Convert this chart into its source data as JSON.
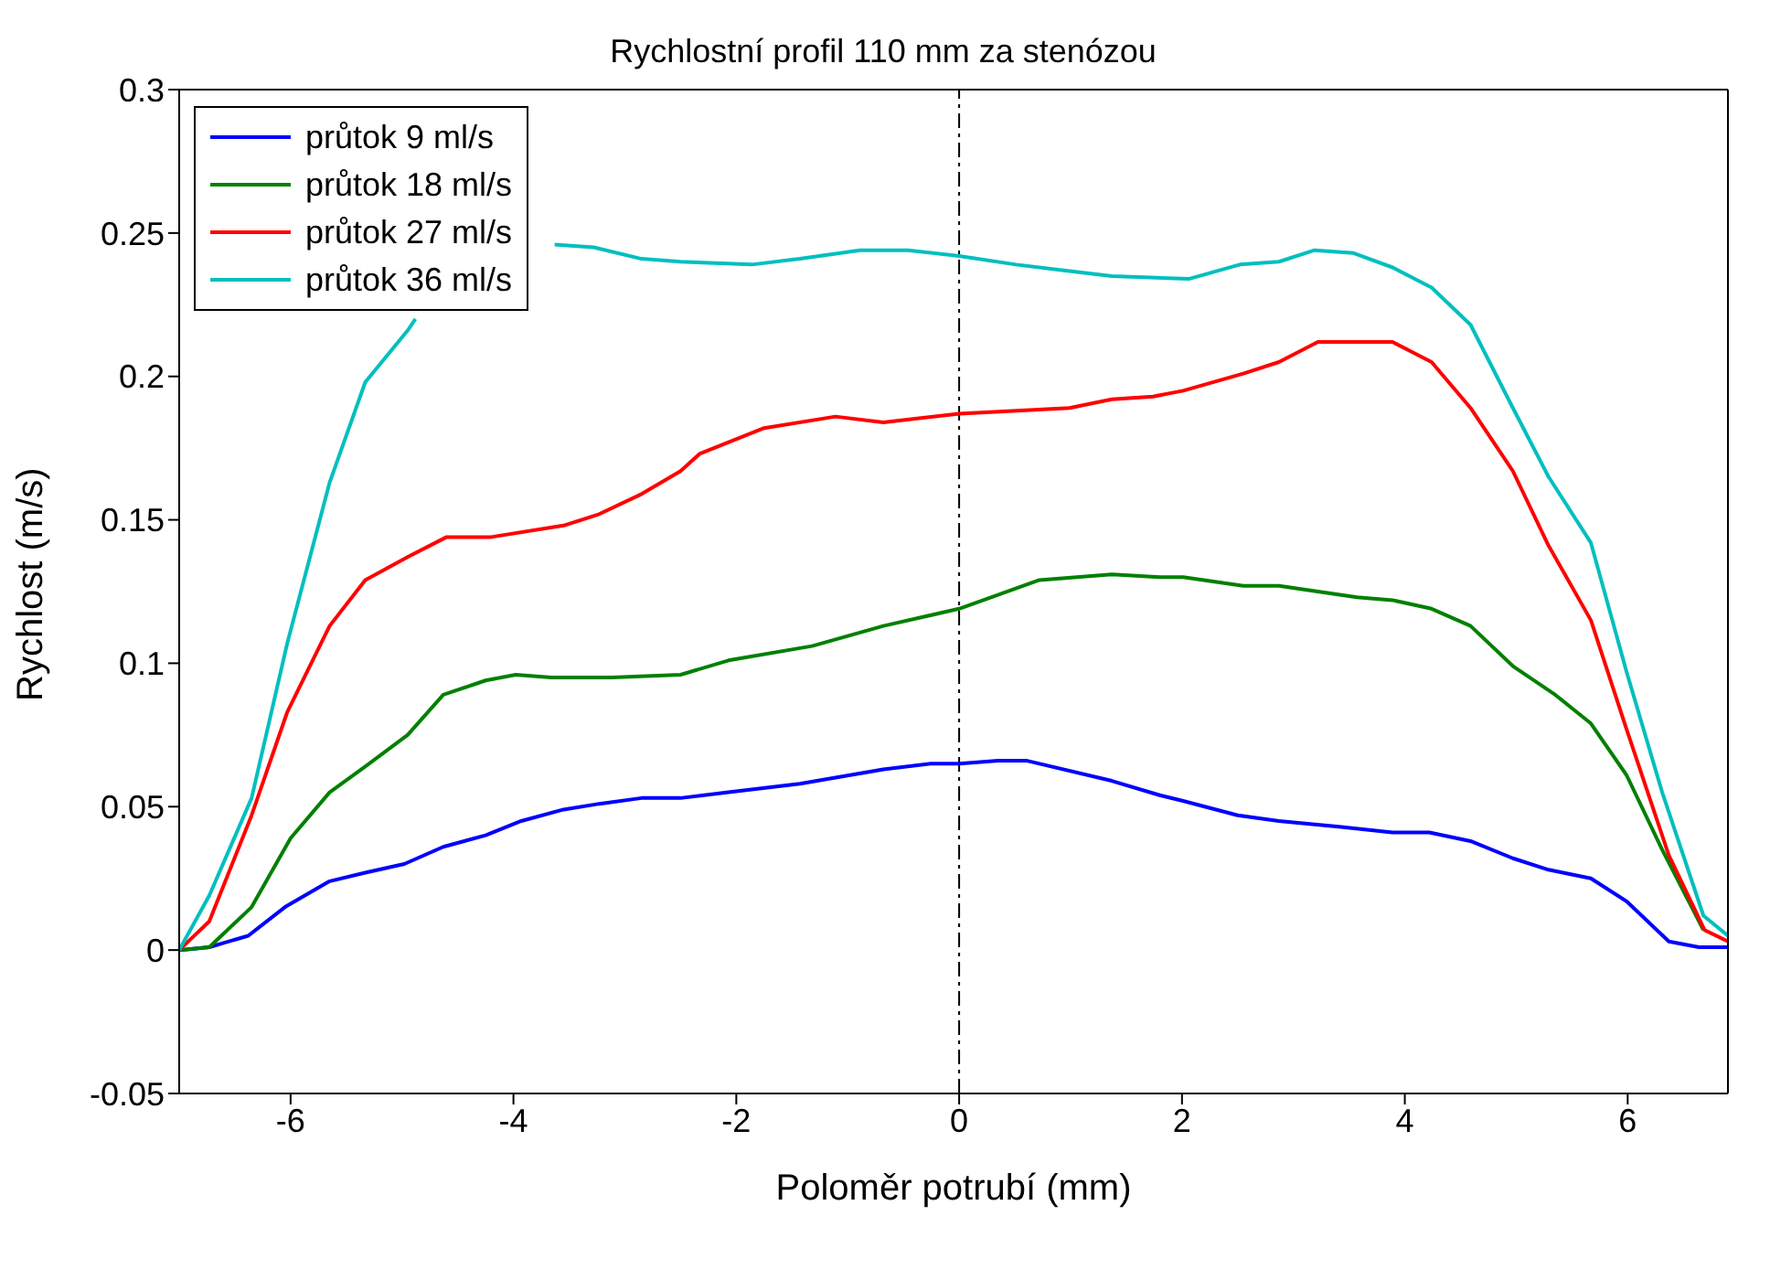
{
  "chart_data": {
    "type": "line",
    "title": "Rychlostní profil 110 mm za stenózou",
    "xlabel": "Poloměr potrubí (mm)",
    "ylabel": "Rychlost (m/s)",
    "xlim": [
      -7,
      6.9
    ],
    "xticks": [
      -6,
      -4,
      -2,
      0,
      2,
      4,
      6
    ],
    "ylim": [
      -0.05,
      0.3
    ],
    "yticks": [
      -0.05,
      0,
      0.05,
      0.1,
      0.15,
      0.2,
      0.25,
      0.3
    ],
    "grid": false,
    "legend": "top left",
    "marker": "none",
    "line_style": "solid",
    "ref_lines": [
      {
        "axis": "x",
        "value": 0,
        "color": "#000000",
        "line_style": "dashdot"
      }
    ],
    "series": [
      {
        "name": "průtok 9 ml/s",
        "color": "#0000ff",
        "x": [
          -7,
          -6.73,
          -6.38,
          -6.05,
          -5.65,
          -5.33,
          -4.98,
          -4.63,
          -4.25,
          -3.93,
          -3.55,
          -3.23,
          -2.85,
          -2.5,
          -2.07,
          -1.43,
          -0.68,
          -0.25,
          0,
          0.35,
          0.61,
          1.37,
          1.8,
          2.01,
          2.5,
          2.87,
          3.41,
          3.89,
          4.22,
          4.59,
          4.97,
          5.29,
          5.67,
          5.99,
          6.37,
          6.64,
          6.9
        ],
        "values": [
          0,
          0.001,
          0.005,
          0.015,
          0.024,
          0.027,
          0.03,
          0.036,
          0.04,
          0.045,
          0.049,
          0.051,
          0.053,
          0.053,
          0.055,
          0.058,
          0.063,
          0.065,
          0.065,
          0.066,
          0.066,
          0.059,
          0.054,
          0.052,
          0.047,
          0.045,
          0.043,
          0.041,
          0.041,
          0.038,
          0.032,
          0.028,
          0.025,
          0.017,
          0.003,
          0.001,
          0.001
        ]
      },
      {
        "name": "průtok 18 ml/s",
        "color": "#008000",
        "x": [
          -7,
          -6.73,
          -6.35,
          -6,
          -5.65,
          -5.33,
          -4.95,
          -4.63,
          -4.25,
          -3.98,
          -3.66,
          -3.12,
          -2.5,
          -2.07,
          -1.32,
          -0.68,
          0,
          0.72,
          1.37,
          1.8,
          2.01,
          2.55,
          2.87,
          3.57,
          3.89,
          4.24,
          4.59,
          4.97,
          5.35,
          5.67,
          5.99,
          6.31,
          6.68
        ],
        "values": [
          0,
          0.001,
          0.015,
          0.039,
          0.055,
          0.064,
          0.075,
          0.089,
          0.094,
          0.096,
          0.095,
          0.095,
          0.096,
          0.101,
          0.106,
          0.113,
          0.119,
          0.129,
          0.131,
          0.13,
          0.13,
          0.127,
          0.127,
          0.123,
          0.122,
          0.119,
          0.113,
          0.099,
          0.089,
          0.079,
          0.061,
          0.035,
          0.007
        ]
      },
      {
        "name": "průtok 27 ml/s",
        "color": "#ff0000",
        "x": [
          -7,
          -6.73,
          -6.35,
          -6.03,
          -5.65,
          -5.33,
          -4.95,
          -4.6,
          -4.2,
          -3.55,
          -3.23,
          -2.85,
          -2.5,
          -2.33,
          -1.75,
          -1.11,
          -0.68,
          0,
          0.99,
          1.37,
          1.74,
          2.01,
          2.55,
          2.87,
          3.22,
          3.89,
          4.24,
          4.59,
          4.97,
          5.29,
          5.67,
          5.99,
          6.37,
          6.69,
          6.9
        ],
        "values": [
          0,
          0.01,
          0.047,
          0.083,
          0.113,
          0.129,
          0.137,
          0.144,
          0.144,
          0.148,
          0.152,
          0.159,
          0.167,
          0.173,
          0.182,
          0.186,
          0.184,
          0.187,
          0.189,
          0.192,
          0.193,
          0.195,
          0.201,
          0.205,
          0.212,
          0.212,
          0.205,
          0.189,
          0.167,
          0.141,
          0.115,
          0.077,
          0.033,
          0.007,
          0.003
        ]
      },
      {
        "name": "průtok 36 ml/s",
        "color": "#00bfbf",
        "x": [
          -7,
          -6.73,
          -6.35,
          -6.03,
          -5.65,
          -5.33,
          -4.95,
          -4.88,
          -4.2,
          -3.63,
          -3.28,
          -2.85,
          -2.5,
          -1.86,
          -1.43,
          -0.89,
          -0.46,
          0,
          0.51,
          0.94,
          1.37,
          2.06,
          2.52,
          2.87,
          3.19,
          3.54,
          3.89,
          4.24,
          4.59,
          4.97,
          5.29,
          5.67,
          5.99,
          6.31,
          6.68,
          6.9
        ],
        "values": [
          0,
          0.019,
          0.053,
          0.107,
          0.163,
          0.198,
          0.216,
          0.22,
          null,
          0.246,
          0.245,
          0.241,
          0.24,
          0.239,
          0.241,
          0.244,
          0.244,
          0.242,
          0.239,
          0.237,
          0.235,
          0.234,
          0.239,
          0.24,
          0.244,
          0.243,
          0.238,
          0.231,
          0.218,
          0.189,
          0.165,
          0.142,
          0.097,
          0.055,
          0.012,
          0.005
        ]
      }
    ]
  }
}
